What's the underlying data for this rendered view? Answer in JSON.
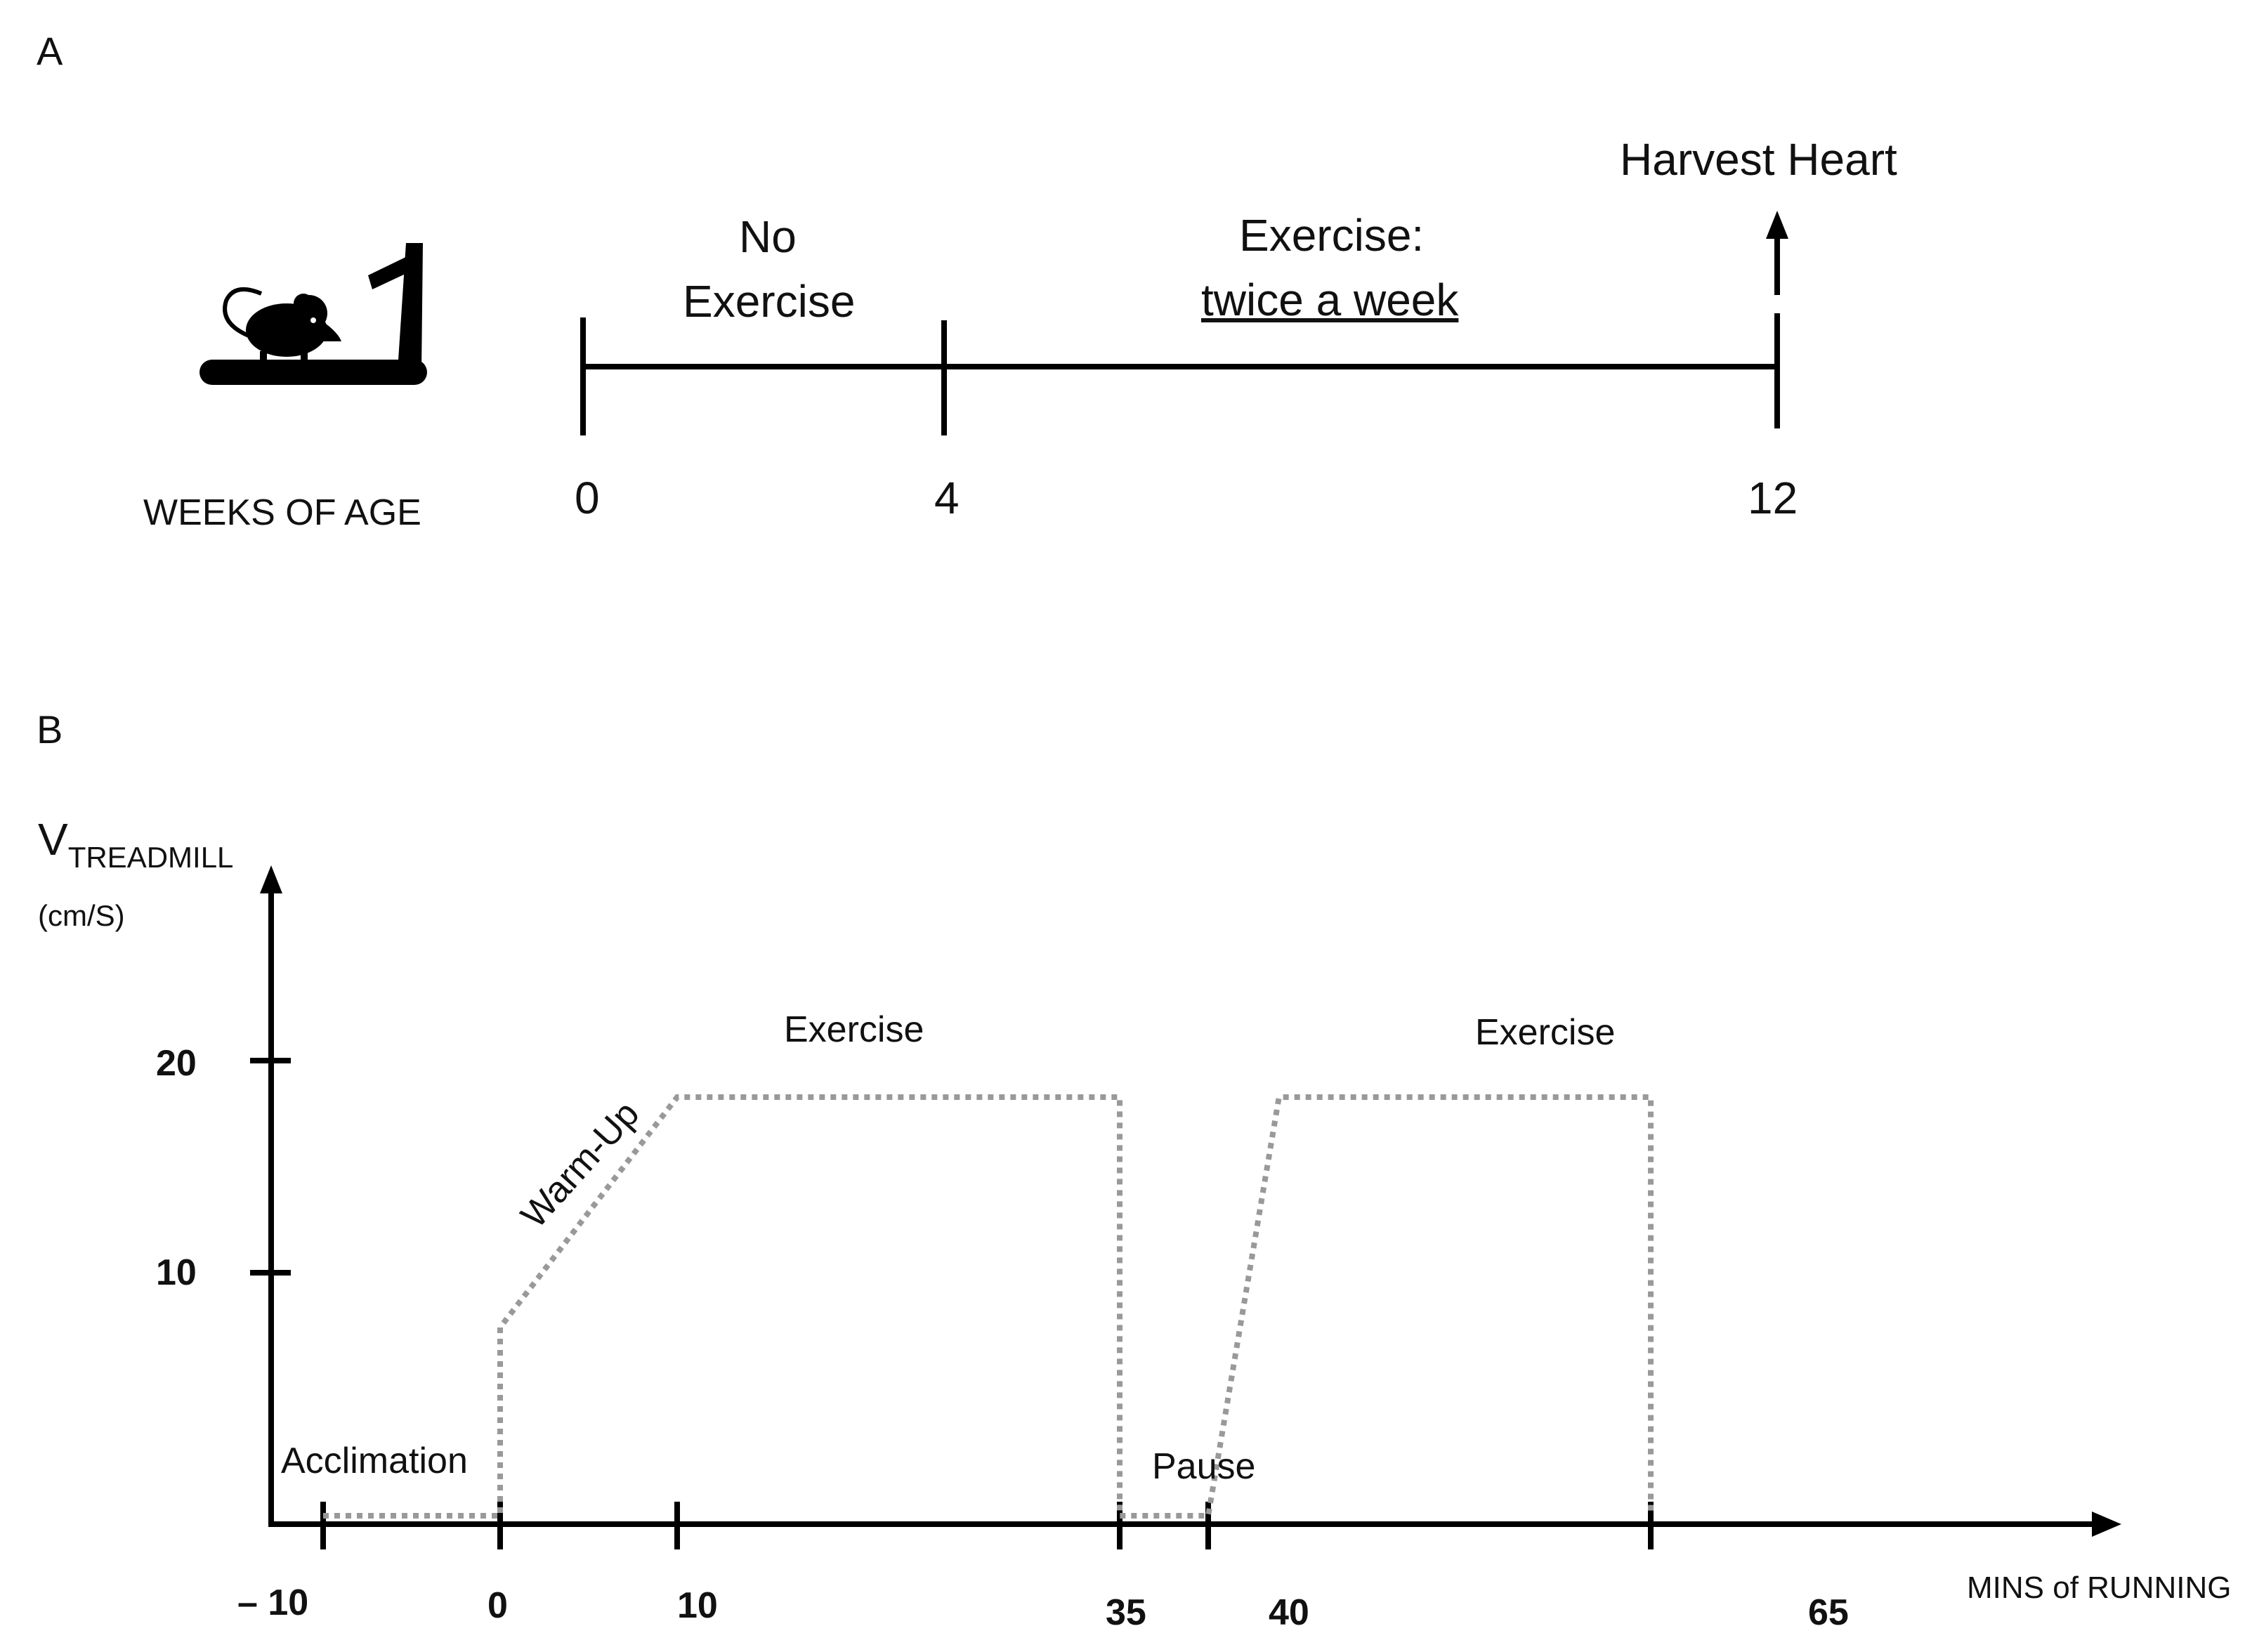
{
  "panelA": {
    "letter": "A",
    "axis_label": "WEEKS OF AGE",
    "ticks": [
      "0",
      "4",
      "12"
    ],
    "segments": {
      "no_exercise_line1": "No",
      "no_exercise_line2": "Exercise",
      "exercise_line1": "Exercise:",
      "exercise_line2": "twice a week"
    },
    "endpoint": "Harvest Heart",
    "icon": "mouse-on-treadmill-icon"
  },
  "panelB": {
    "letter": "B",
    "y_label_main": "V",
    "y_label_sub": "TREADMILL",
    "y_unit": "(cm/S)",
    "x_label": "MINS of RUNNING",
    "y_ticks": [
      "20",
      "10"
    ],
    "x_ticks": [
      "– 10",
      "0",
      "10",
      "35",
      "40",
      "65"
    ],
    "annotations": {
      "acclimation": "Acclimation",
      "warmup": "Warm-Up",
      "exercise1": "Exercise",
      "pause": "Pause",
      "exercise2": "Exercise"
    },
    "colors": {
      "profile": "#999999",
      "axis": "#000000"
    }
  },
  "chart_data": {
    "type": "line",
    "x": [
      -10,
      0,
      0,
      10,
      35,
      35,
      40,
      44,
      65,
      65
    ],
    "series": [
      {
        "values": [
          0,
          0,
          9,
          20,
          20,
          0,
          0,
          20,
          20,
          0
        ]
      }
    ],
    "xlabel": "MINS of RUNNING",
    "ylabel": "VTREADMILL (cm/S)",
    "x_ticks": [
      -10,
      0,
      10,
      35,
      40,
      65
    ],
    "y_ticks": [
      10,
      20
    ],
    "grid": false
  }
}
